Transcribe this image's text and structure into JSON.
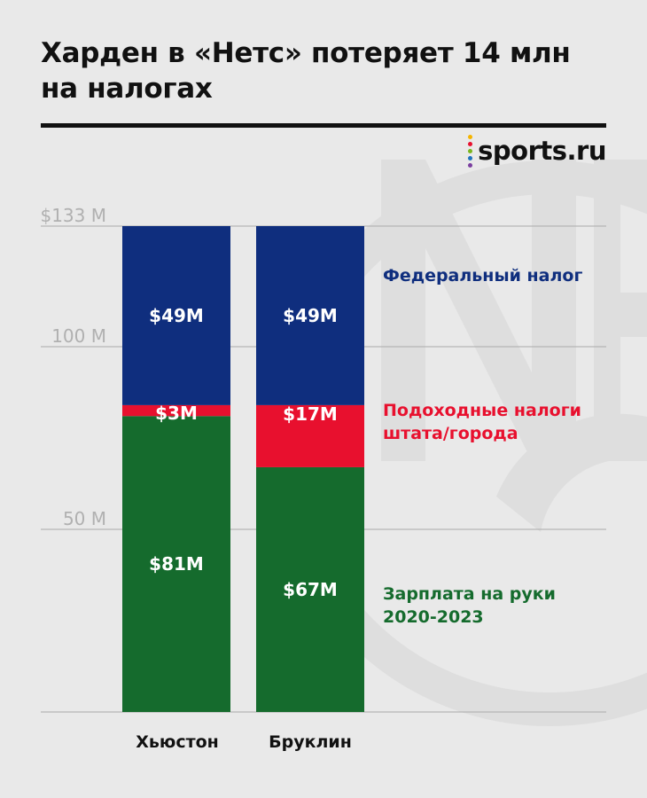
{
  "header": {
    "title": "Харден в «Нетс» потеряет 14 млн на налогах",
    "logo_text": "sports.ru",
    "logo_dot_colors": [
      "#f5b400",
      "#e8102e",
      "#7ab51d",
      "#1e73be",
      "#7b3fa0"
    ]
  },
  "watermark_icon": "brooklyn-nets-logo",
  "chart_data": {
    "type": "bar",
    "stacked": true,
    "categories": [
      "Хьюстон",
      "Бруклин"
    ],
    "series": [
      {
        "name": "Зарплата на руки 2020-2023",
        "color": "#156b2d",
        "values": [
          81,
          67
        ],
        "labels": [
          "$81M",
          "$67M"
        ]
      },
      {
        "name": "Подоходные налоги штата/города",
        "color": "#e8102e",
        "values": [
          3,
          17
        ],
        "labels": [
          "$3M",
          "$17M"
        ]
      },
      {
        "name": "Федеральный налог",
        "color": "#0f2e7e",
        "values": [
          49,
          49
        ],
        "labels": [
          "$49M",
          "$49M"
        ]
      }
    ],
    "yticks": [
      {
        "value": 50,
        "label": "50 M"
      },
      {
        "value": 100,
        "label": "100 M"
      },
      {
        "value": 133,
        "label": "$133 M"
      }
    ],
    "ylim": [
      0,
      133
    ],
    "grid": true,
    "legend_placement": "right, aligned with segments",
    "legend": [
      {
        "lines": [
          "Федеральный налог"
        ],
        "color": "#0f2e7e"
      },
      {
        "lines": [
          "Подоходные налоги",
          "штата/города"
        ],
        "color": "#e8102e"
      },
      {
        "lines": [
          "Зарплата на руки",
          "2020-2023"
        ],
        "color": "#156b2d"
      }
    ]
  }
}
